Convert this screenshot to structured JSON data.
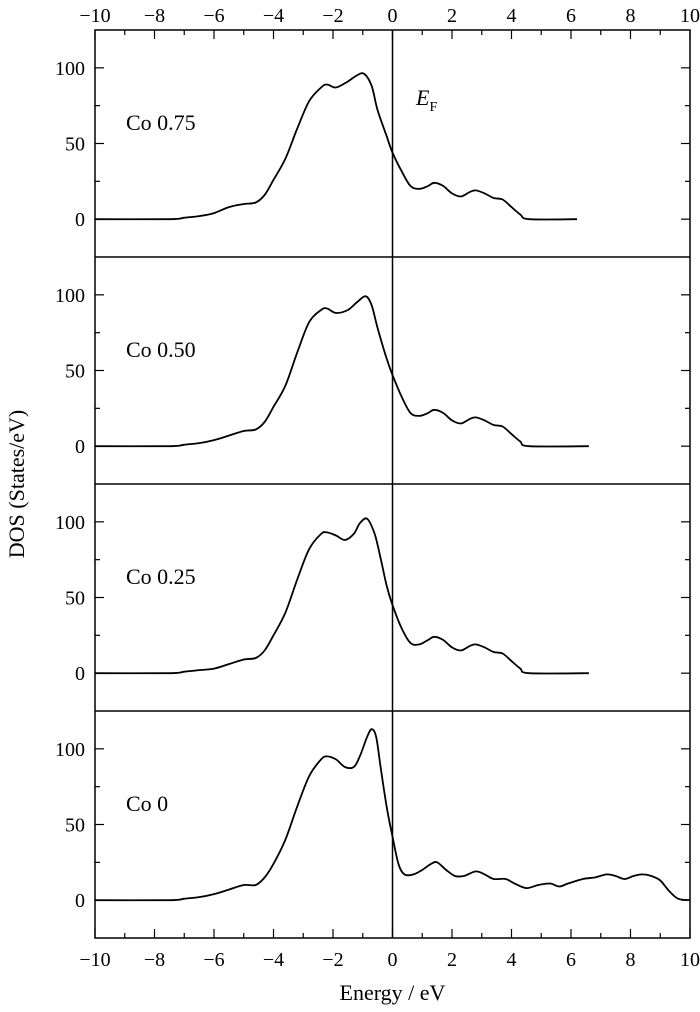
{
  "chart_data": {
    "type": "line",
    "xlabel": "Energy / eV",
    "ylabel": "DOS (States/eV)",
    "xlim": [
      -10,
      10
    ],
    "ylim": [
      -25,
      125
    ],
    "x_ticks": [
      "−10",
      "−8",
      "−6",
      "−4",
      "−2",
      "0",
      "2",
      "4",
      "6",
      "8",
      "10"
    ],
    "y_ticks": [
      "0",
      "50",
      "100"
    ],
    "fermi_label": {
      "main": "E",
      "sub": "F"
    },
    "fermi_energy": 0,
    "panels": [
      {
        "label": "Co 0.75",
        "points": [
          [
            -10,
            0
          ],
          [
            -7.5,
            0
          ],
          [
            -7,
            1
          ],
          [
            -6.5,
            2
          ],
          [
            -6,
            4
          ],
          [
            -5.5,
            8
          ],
          [
            -5,
            10
          ],
          [
            -4.6,
            11
          ],
          [
            -4.3,
            16
          ],
          [
            -4,
            26
          ],
          [
            -3.6,
            40
          ],
          [
            -3.2,
            60
          ],
          [
            -2.8,
            78
          ],
          [
            -2.4,
            87
          ],
          [
            -2.2,
            89
          ],
          [
            -1.9,
            87
          ],
          [
            -1.5,
            91
          ],
          [
            -1.2,
            95
          ],
          [
            -0.95,
            96
          ],
          [
            -0.7,
            88
          ],
          [
            -0.5,
            72
          ],
          [
            -0.2,
            55
          ],
          [
            0,
            44
          ],
          [
            0.3,
            32
          ],
          [
            0.6,
            22
          ],
          [
            0.9,
            20
          ],
          [
            1.2,
            22
          ],
          [
            1.4,
            24
          ],
          [
            1.7,
            22
          ],
          [
            2,
            17
          ],
          [
            2.3,
            15
          ],
          [
            2.6,
            18
          ],
          [
            2.8,
            19
          ],
          [
            3.1,
            17
          ],
          [
            3.4,
            14
          ],
          [
            3.7,
            13
          ],
          [
            4,
            8
          ],
          [
            4.3,
            3
          ],
          [
            4.6,
            0
          ],
          [
            6.2,
            0
          ]
        ]
      },
      {
        "label": "Co 0.50",
        "points": [
          [
            -10,
            0
          ],
          [
            -7.5,
            0
          ],
          [
            -7,
            1
          ],
          [
            -6.5,
            2
          ],
          [
            -6,
            4
          ],
          [
            -5.5,
            7
          ],
          [
            -5,
            10
          ],
          [
            -4.6,
            11
          ],
          [
            -4.3,
            16
          ],
          [
            -4,
            26
          ],
          [
            -3.6,
            40
          ],
          [
            -3.2,
            62
          ],
          [
            -2.8,
            82
          ],
          [
            -2.4,
            90
          ],
          [
            -2.2,
            91
          ],
          [
            -1.9,
            88
          ],
          [
            -1.5,
            90
          ],
          [
            -1.2,
            95
          ],
          [
            -0.9,
            99
          ],
          [
            -0.7,
            93
          ],
          [
            -0.5,
            78
          ],
          [
            -0.2,
            58
          ],
          [
            0,
            47
          ],
          [
            0.3,
            33
          ],
          [
            0.6,
            22
          ],
          [
            0.9,
            20
          ],
          [
            1.2,
            22
          ],
          [
            1.4,
            24
          ],
          [
            1.7,
            22
          ],
          [
            2,
            17
          ],
          [
            2.3,
            15
          ],
          [
            2.6,
            18
          ],
          [
            2.8,
            19
          ],
          [
            3.1,
            17
          ],
          [
            3.4,
            14
          ],
          [
            3.7,
            13
          ],
          [
            4,
            8
          ],
          [
            4.3,
            3
          ],
          [
            4.6,
            0
          ],
          [
            6.6,
            0
          ]
        ]
      },
      {
        "label": "Co 0.25",
        "points": [
          [
            -10,
            0
          ],
          [
            -7.5,
            0
          ],
          [
            -7,
            1
          ],
          [
            -6.5,
            2
          ],
          [
            -6,
            3
          ],
          [
            -5.5,
            6
          ],
          [
            -5,
            9
          ],
          [
            -4.6,
            10
          ],
          [
            -4.3,
            15
          ],
          [
            -4,
            25
          ],
          [
            -3.6,
            40
          ],
          [
            -3.2,
            62
          ],
          [
            -2.8,
            82
          ],
          [
            -2.4,
            92
          ],
          [
            -2.2,
            93
          ],
          [
            -1.9,
            91
          ],
          [
            -1.6,
            88
          ],
          [
            -1.3,
            92
          ],
          [
            -1.1,
            99
          ],
          [
            -0.85,
            102
          ],
          [
            -0.6,
            92
          ],
          [
            -0.4,
            76
          ],
          [
            -0.2,
            58
          ],
          [
            0,
            45
          ],
          [
            0.3,
            30
          ],
          [
            0.6,
            20
          ],
          [
            0.9,
            19
          ],
          [
            1.2,
            22
          ],
          [
            1.4,
            24
          ],
          [
            1.7,
            22
          ],
          [
            2,
            17
          ],
          [
            2.3,
            15
          ],
          [
            2.6,
            18
          ],
          [
            2.8,
            19
          ],
          [
            3.1,
            17
          ],
          [
            3.4,
            14
          ],
          [
            3.7,
            13
          ],
          [
            4,
            8
          ],
          [
            4.3,
            3
          ],
          [
            4.6,
            0
          ],
          [
            6.6,
            0
          ]
        ]
      },
      {
        "label": "Co 0",
        "points": [
          [
            -10,
            0
          ],
          [
            -7.5,
            0
          ],
          [
            -7,
            1
          ],
          [
            -6.5,
            2
          ],
          [
            -6,
            4
          ],
          [
            -5.5,
            7
          ],
          [
            -5,
            10
          ],
          [
            -4.6,
            10
          ],
          [
            -4.3,
            15
          ],
          [
            -4,
            24
          ],
          [
            -3.6,
            40
          ],
          [
            -3.2,
            62
          ],
          [
            -2.8,
            82
          ],
          [
            -2.4,
            93
          ],
          [
            -2.2,
            95
          ],
          [
            -1.9,
            93
          ],
          [
            -1.6,
            88
          ],
          [
            -1.3,
            88
          ],
          [
            -1.1,
            95
          ],
          [
            -0.85,
            108
          ],
          [
            -0.7,
            113
          ],
          [
            -0.55,
            108
          ],
          [
            -0.4,
            88
          ],
          [
            -0.2,
            62
          ],
          [
            0,
            42
          ],
          [
            0.2,
            24
          ],
          [
            0.4,
            17
          ],
          [
            0.7,
            17
          ],
          [
            1,
            20
          ],
          [
            1.3,
            24
          ],
          [
            1.5,
            25
          ],
          [
            1.8,
            20
          ],
          [
            2.1,
            16
          ],
          [
            2.4,
            16
          ],
          [
            2.8,
            19
          ],
          [
            3.1,
            17
          ],
          [
            3.4,
            14
          ],
          [
            3.8,
            14
          ],
          [
            4.1,
            11
          ],
          [
            4.5,
            8
          ],
          [
            4.9,
            10
          ],
          [
            5.3,
            11
          ],
          [
            5.6,
            9
          ],
          [
            5.9,
            11
          ],
          [
            6.4,
            14
          ],
          [
            6.8,
            15
          ],
          [
            7.2,
            17
          ],
          [
            7.5,
            16
          ],
          [
            7.8,
            14
          ],
          [
            8.1,
            16
          ],
          [
            8.4,
            17
          ],
          [
            8.7,
            16
          ],
          [
            9,
            13
          ],
          [
            9.3,
            6
          ],
          [
            9.6,
            1
          ],
          [
            10,
            0
          ]
        ]
      }
    ]
  }
}
